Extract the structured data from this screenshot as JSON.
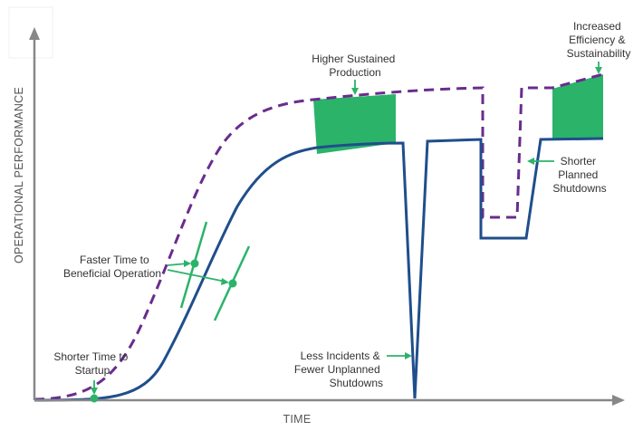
{
  "axes": {
    "y_label": "OPERATIONAL PERFORMANCE",
    "x_label": "TIME"
  },
  "annotations": {
    "higher_sustained_production": [
      "Higher Sustained",
      "Production"
    ],
    "increased_efficiency": [
      "Increased",
      "Efficiency &",
      "Sustainability"
    ],
    "shorter_planned_shutdowns": [
      "Shorter",
      "Planned",
      "Shutdowns"
    ],
    "faster_time_to_beneficial_operation": [
      "Faster Time to",
      "Beneficial Operation"
    ],
    "shorter_time_to_startup": [
      "Shorter Time to",
      "Startup"
    ],
    "less_incidents": [
      "Less Incidents &",
      "Fewer Unplanned",
      "Shutdowns"
    ]
  },
  "colors": {
    "baseline_curve": "#1f4e8c",
    "improved_curve": "#6a2c8c",
    "highlight": "#2bb36a",
    "axis": "#888888"
  }
}
